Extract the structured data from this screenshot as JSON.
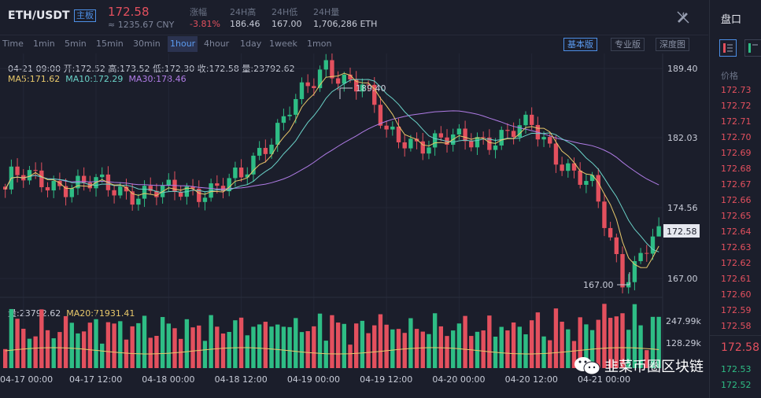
{
  "header": {
    "pair": "ETH/USDT",
    "badge": "主板",
    "price": "172.58",
    "price_cny": "≈ 1235.67 CNY",
    "stats": [
      {
        "label": "涨幅",
        "value": "-3.81%"
      },
      {
        "label": "24H高",
        "value": "186.46"
      },
      {
        "label": "24H低",
        "value": "167.00"
      },
      {
        "label": "24H量",
        "value": "1,706,286 ETH"
      }
    ]
  },
  "timeframes": [
    "Time",
    "1min",
    "5min",
    "15min",
    "30min",
    "1hour",
    "4hour",
    "1day",
    "1week",
    "1mon"
  ],
  "active_timeframe": "1hour",
  "views": [
    "基本版",
    "专业版",
    "深度图"
  ],
  "active_view": "基本版",
  "ohlc": "04-21 09:00  开:172.52  高:173.52  低:172.30  收:172.58  量:23792.62",
  "ma": {
    "ma5": "MA5:171.62",
    "ma10": "MA10:172.29",
    "ma30": "MA30:178.46"
  },
  "vol_info": {
    "vol": "量:23792.62",
    "ma20": "MA20:71931.41"
  },
  "price_axis": [
    "189.40",
    "182.03",
    "174.56",
    "167.00"
  ],
  "current_price_tag": "172.58",
  "annotations": {
    "high": "189.40",
    "low": "167.00"
  },
  "vol_axis": [
    "247.99k",
    "128.29k"
  ],
  "time_axis": [
    "04-17 00:00",
    "04-17 12:00",
    "04-18 00:00",
    "04-18 12:00",
    "04-19 00:00",
    "04-19 12:00",
    "04-20 00:00",
    "04-20 12:00",
    "04-21 00:00"
  ],
  "orderbook": {
    "title": "盘口",
    "col_label": "价格",
    "asks": [
      "172.73",
      "172.72",
      "172.71",
      "172.70",
      "172.69",
      "172.68",
      "172.67",
      "172.66",
      "172.65",
      "172.64",
      "172.63",
      "172.62",
      "172.61",
      "172.60",
      "172.59",
      "172.58"
    ],
    "last": "172.58",
    "bids": [
      "172.53",
      "172.52"
    ]
  },
  "watermark": "韭菜币圈区块链",
  "colors": {
    "up": "#2ebd85",
    "down": "#e3505e",
    "ma5": "#e8c86a",
    "ma10": "#6ad2c8",
    "ma30": "#b07ce6",
    "accent": "#4d8fe6"
  },
  "chart_data": {
    "type": "candlestick",
    "interval": "1hour",
    "x_range": [
      "04-16 21:00",
      "04-21 09:00"
    ],
    "ylim": [
      165,
      191
    ],
    "anchor_prices": [
      {
        "time": "04-17 00:00",
        "close": 177.6
      },
      {
        "time": "04-18 00:00",
        "close": 176.0
      },
      {
        "time": "04-18 12:00",
        "close": 177.4
      },
      {
        "time": "04-18 20:00",
        "close": 185.5
      },
      {
        "time": "04-19 00:00",
        "close": 187.5
      },
      {
        "time": "04-19 02:00",
        "high": 189.4
      },
      {
        "time": "04-19 08:00",
        "close": 188.0
      },
      {
        "time": "04-19 12:00",
        "close": 182.0
      },
      {
        "time": "04-20 00:00",
        "close": 181.5
      },
      {
        "time": "04-20 12:00",
        "close": 183.0
      },
      {
        "time": "04-20 22:00",
        "close": 176.5
      },
      {
        "time": "04-21 03:00",
        "low": 167.0
      },
      {
        "time": "04-21 09:00",
        "open": 172.52,
        "high": 173.52,
        "low": 172.3,
        "close": 172.58,
        "volume": 23792.62
      }
    ],
    "indicators": {
      "ma5": 171.62,
      "ma10": 172.29,
      "ma30": 178.46,
      "vol_ma20": 71931.41
    },
    "volume_axis": [
      "247.99k",
      "128.29k"
    ]
  }
}
